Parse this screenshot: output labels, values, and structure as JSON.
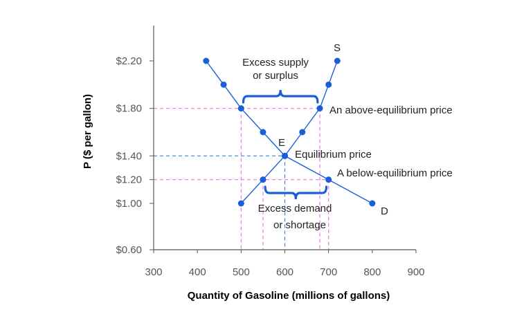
{
  "colors": {
    "accent": "#1a5fd8",
    "guide_pink": "#e37ae0",
    "guide_blue": "#3f7fd8",
    "text": "#222222",
    "tick_text": "#555555"
  },
  "chart_data": {
    "type": "line",
    "xlabel": "Quantity of Gasoline (millions of gallons)",
    "ylabel": "P ($ per gallon)",
    "xlim": [
      300,
      900
    ],
    "x_ticks": [
      300,
      400,
      500,
      600,
      700,
      800,
      900
    ],
    "y_ticks": [
      {
        "value": 0.6,
        "label": "$0.60"
      },
      {
        "value": 1.0,
        "label": "$1.00"
      },
      {
        "value": 1.2,
        "label": "$1.20"
      },
      {
        "value": 1.4,
        "label": "$1.40"
      },
      {
        "value": 1.8,
        "label": "$1.80"
      },
      {
        "value": 2.2,
        "label": "$2.20"
      }
    ],
    "grid": false,
    "series": [
      {
        "name": "D",
        "points": [
          {
            "x": 420,
            "y": 2.2
          },
          {
            "x": 460,
            "y": 2.0
          },
          {
            "x": 500,
            "y": 1.8
          },
          {
            "x": 550,
            "y": 1.6
          },
          {
            "x": 600,
            "y": 1.4
          },
          {
            "x": 700,
            "y": 1.2
          },
          {
            "x": 800,
            "y": 1.0
          }
        ]
      },
      {
        "name": "S",
        "points": [
          {
            "x": 500,
            "y": 1.0
          },
          {
            "x": 550,
            "y": 1.2
          },
          {
            "x": 600,
            "y": 1.4
          },
          {
            "x": 640,
            "y": 1.6
          },
          {
            "x": 680,
            "y": 1.8
          },
          {
            "x": 700,
            "y": 2.0
          },
          {
            "x": 720,
            "y": 2.2
          }
        ]
      }
    ],
    "equilibrium": {
      "label": "E",
      "x": 600,
      "y": 1.4
    },
    "annotations": {
      "excess_supply": [
        "Excess supply",
        "or surplus"
      ],
      "excess_demand": [
        "Excess demand",
        "or shortage"
      ],
      "above_price": "An above-equilibrium price",
      "below_price": "A below-equilibrium price",
      "equilibrium_price": "Equilibrium price"
    }
  }
}
